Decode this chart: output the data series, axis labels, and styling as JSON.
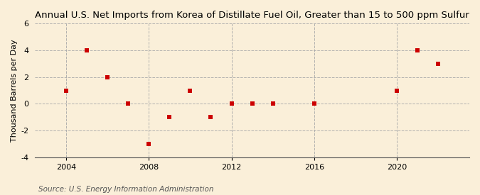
{
  "title": "Annual U.S. Net Imports from Korea of Distillate Fuel Oil, Greater than 15 to 500 ppm Sulfur",
  "ylabel": "Thousand Barrels per Day",
  "source": "Source: U.S. Energy Information Administration",
  "background_color": "#faefd9",
  "years": [
    2004,
    2005,
    2006,
    2007,
    2008,
    2009,
    2010,
    2011,
    2012,
    2013,
    2014,
    2016,
    2020,
    2021,
    2022
  ],
  "values": [
    1,
    4,
    2,
    0,
    -3,
    -1,
    1,
    -1,
    0,
    0,
    0,
    0,
    1,
    4,
    3
  ],
  "marker_color": "#cc0000",
  "marker_size": 25,
  "xlim": [
    2002.5,
    2023.5
  ],
  "ylim": [
    -4,
    6
  ],
  "yticks": [
    -4,
    -2,
    0,
    2,
    4,
    6
  ],
  "xticks": [
    2004,
    2008,
    2012,
    2016,
    2020
  ],
  "title_fontsize": 9.5,
  "label_fontsize": 8,
  "tick_fontsize": 8,
  "source_fontsize": 7.5
}
